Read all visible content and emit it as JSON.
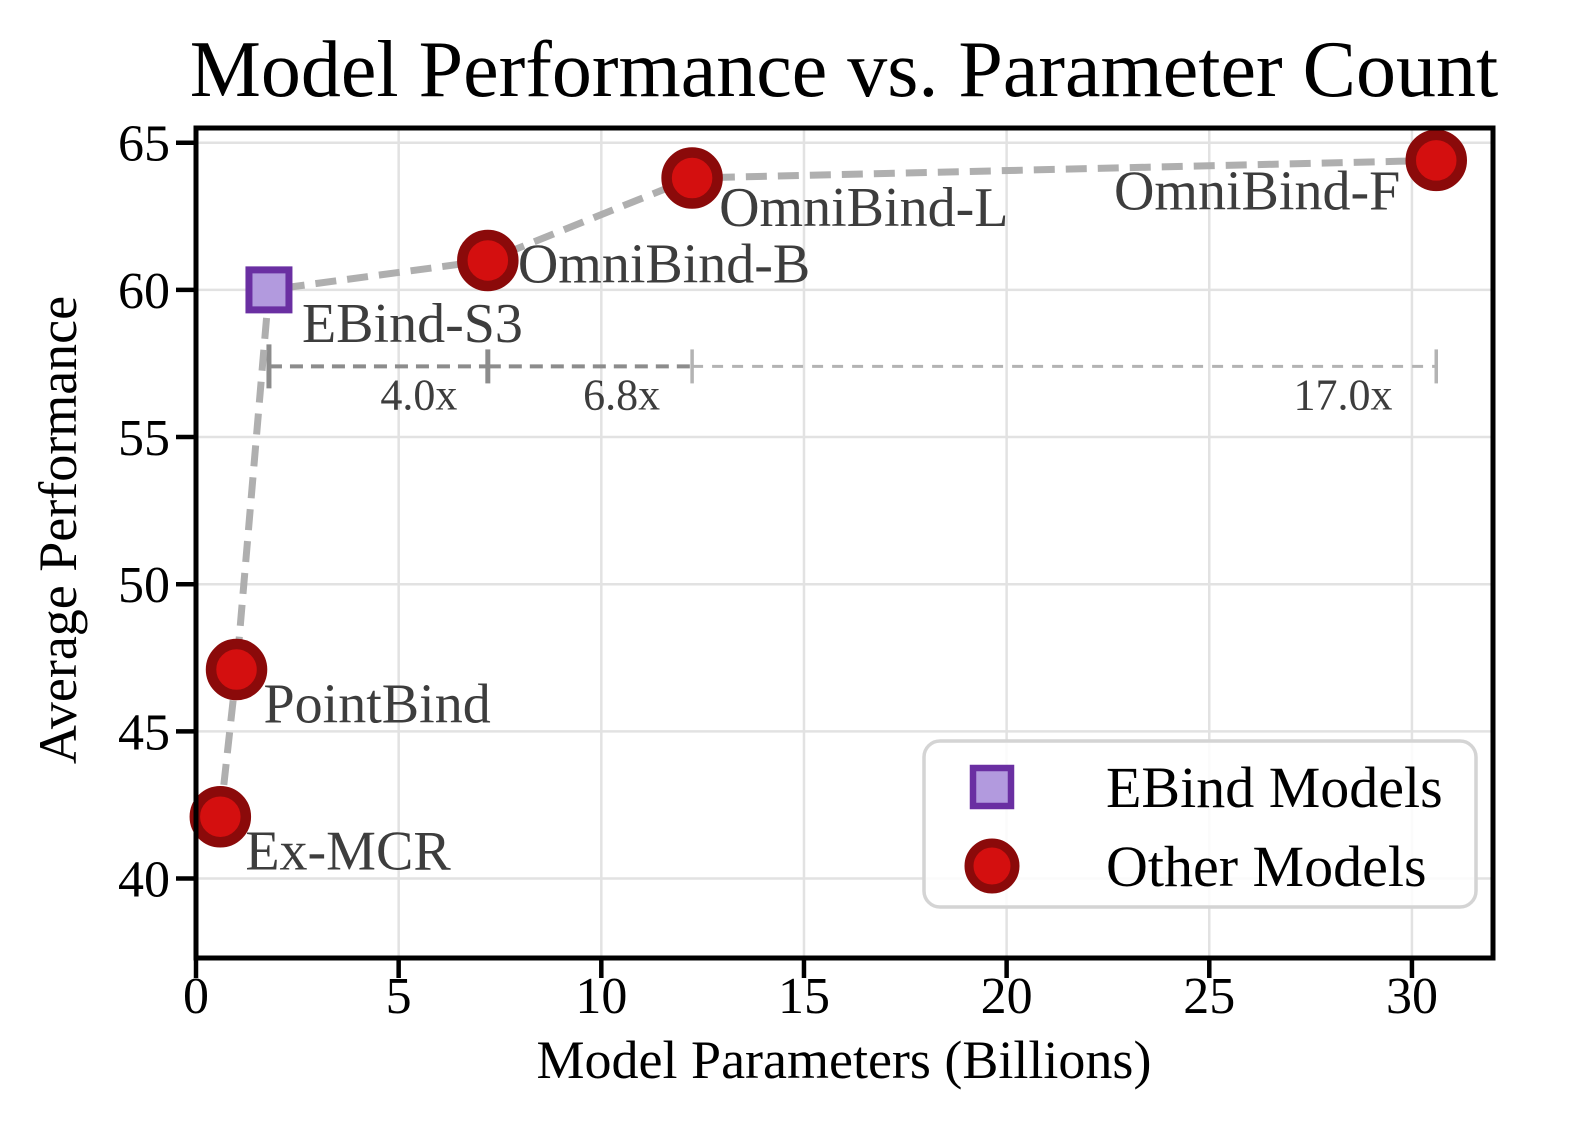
{
  "chart_data": {
    "type": "scatter",
    "title": "Model Performance vs. Parameter Count",
    "xlabel": "Model Parameters (Billions)",
    "ylabel": "Average Performance",
    "xlim": [
      0,
      32
    ],
    "ylim": [
      37.3,
      65.5
    ],
    "xticks": [
      0,
      5,
      10,
      15,
      20,
      25,
      30
    ],
    "yticks": [
      40,
      45,
      50,
      55,
      60,
      65
    ],
    "grid": true,
    "grid_color": "#e2e2e2",
    "axis_color": "#000000",
    "background": "#ffffff",
    "point_label_color": "#3d3d3d",
    "series": [
      {
        "name": "EBind Models",
        "marker": "square",
        "fill": "#b29ade",
        "edge": "#6a2fa2",
        "points": [
          {
            "label": "EBind-S3",
            "x": 1.8,
            "y": 60.0,
            "label_anchor": "start",
            "label_dx": 33,
            "label_dy": 52
          }
        ]
      },
      {
        "name": "Other Models",
        "marker": "circle",
        "fill": "#d40f0f",
        "edge": "#8b0a0a",
        "points": [
          {
            "label": "Ex-MCR",
            "x": 0.6,
            "y": 42.1,
            "label_anchor": "start",
            "label_dx": 25,
            "label_dy": 53
          },
          {
            "label": "PointBind",
            "x": 1.0,
            "y": 47.1,
            "label_anchor": "start",
            "label_dx": 27,
            "label_dy": 53
          },
          {
            "label": "OmniBind-B",
            "x": 7.2,
            "y": 61.0,
            "label_anchor": "start",
            "label_dx": 30,
            "label_dy": 22
          },
          {
            "label": "OmniBind-L",
            "x": 12.24,
            "y": 63.8,
            "label_anchor": "start",
            "label_dx": 27,
            "label_dy": 48
          },
          {
            "label": "OmniBind-F",
            "x": 30.6,
            "y": 64.4,
            "label_anchor": "end",
            "label_dx": -36,
            "label_dy": 49
          }
        ]
      }
    ],
    "trend_line": {
      "points_x": [
        0.6,
        1.0,
        1.8,
        7.2,
        12.24,
        30.6
      ],
      "points_y": [
        42.1,
        47.1,
        60.0,
        61.0,
        63.8,
        64.4
      ],
      "color": "#ababab",
      "width": 7,
      "dash": "21 11"
    },
    "multiplier_bar": {
      "y": 57.4,
      "color_strong": "#8c8c8c",
      "color_light": "#b3b3b3",
      "label_color": "#3d3d3d",
      "segments": [
        {
          "from": 1.8,
          "to": 7.2,
          "label": "4.0x",
          "label_x": 5.5,
          "emphasis": true
        },
        {
          "from": 7.2,
          "to": 12.24,
          "label": "6.8x",
          "label_x": 10.5,
          "emphasis": true
        },
        {
          "from": 12.24,
          "to": 30.6,
          "label": "17.0x",
          "label_x": 28.3,
          "emphasis": false
        }
      ]
    },
    "legend": {
      "position": "lower right",
      "items": [
        {
          "label": "EBind Models",
          "marker": "square",
          "fill": "#b29ade",
          "edge": "#6a2fa2"
        },
        {
          "label": "Other Models",
          "marker": "circle",
          "fill": "#d40f0f",
          "edge": "#8b0a0a"
        }
      ]
    }
  }
}
